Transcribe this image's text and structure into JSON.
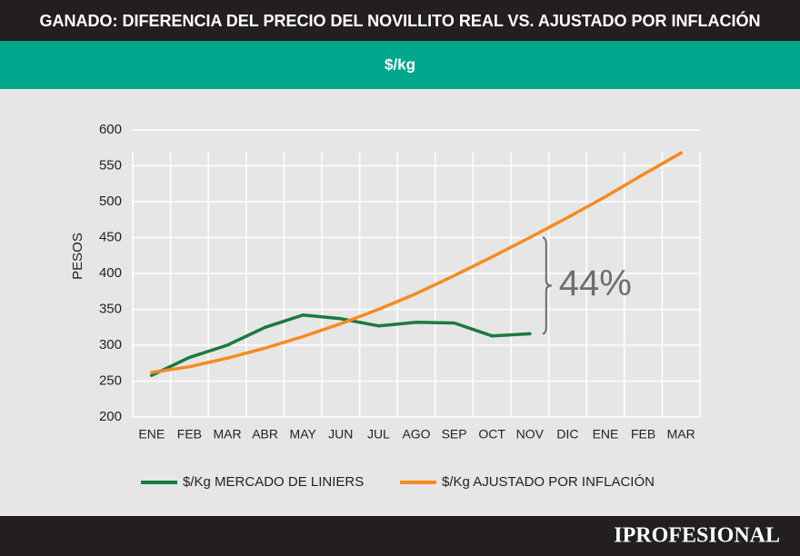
{
  "chart_data": {
    "type": "line",
    "title": "GANADO: DIFERENCIA DEL PRECIO DEL NOVILLITO REAL VS. AJUSTADO POR INFLACIÓN",
    "subtitle": "$/kg",
    "y_label": "PESOS",
    "categories": [
      "ENE",
      "FEB",
      "MAR",
      "ABR",
      "MAY",
      "JUN",
      "JUL",
      "AGO",
      "SEP",
      "OCT",
      "NOV",
      "DIC",
      "ENE",
      "FEB",
      "MAR"
    ],
    "series": [
      {
        "name": "$/Kg MERCADO DE LINIERS",
        "color": "#1b7a3e",
        "values": [
          258,
          283,
          300,
          325,
          342,
          337,
          327,
          332,
          331,
          313,
          316,
          null,
          null,
          null,
          null
        ]
      },
      {
        "name": "$/Kg AJUSTADO POR INFLACIÓN",
        "color": "#f68b1f",
        "values": [
          262,
          270,
          282,
          296,
          312,
          330,
          350,
          372,
          397,
          423,
          450,
          478,
          507,
          538,
          568
        ]
      }
    ],
    "annotation": "44%",
    "ylim": [
      200,
      600
    ],
    "yticks": [
      200,
      250,
      300,
      350,
      400,
      450,
      500,
      550,
      600
    ],
    "grid": true
  },
  "footer": {
    "brand": "IPROFESIONAL"
  }
}
